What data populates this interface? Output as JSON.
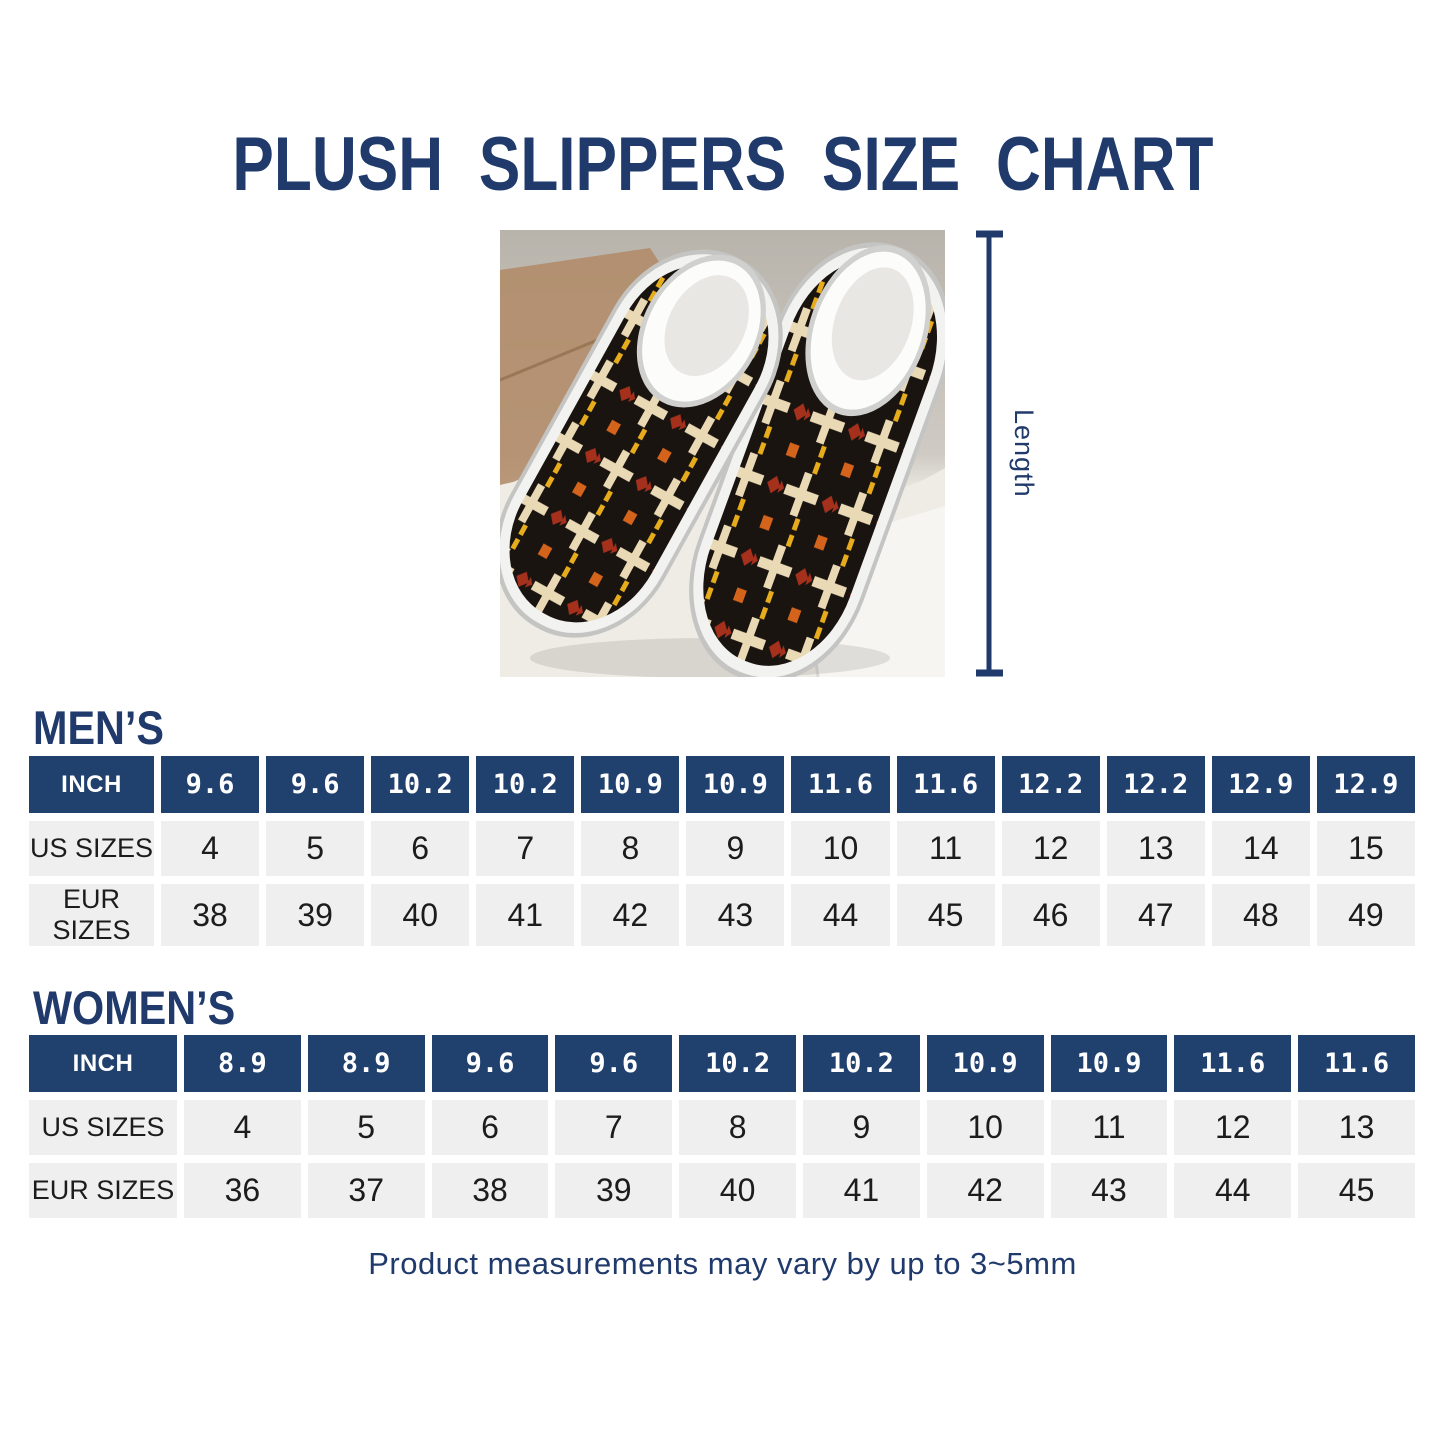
{
  "page": {
    "title": "PLUSH SLIPPERS SIZE CHART",
    "footer_note": "Product measurements may vary by up to 3~5mm"
  },
  "product": {
    "length_label": "Length"
  },
  "mens": {
    "heading": "MEN’S",
    "rows": [
      {
        "key": "inch",
        "label": "INCH",
        "header": true,
        "values": [
          "9.6",
          "9.6",
          "10.2",
          "10.2",
          "10.9",
          "10.9",
          "11.6",
          "11.6",
          "12.2",
          "12.2",
          "12.9",
          "12.9"
        ]
      },
      {
        "key": "us",
        "label": "US SIZES",
        "header": false,
        "values": [
          "4",
          "5",
          "6",
          "7",
          "8",
          "9",
          "10",
          "11",
          "12",
          "13",
          "14",
          "15"
        ]
      },
      {
        "key": "eur",
        "label": "EUR SIZES",
        "header": false,
        "values": [
          "38",
          "39",
          "40",
          "41",
          "42",
          "43",
          "44",
          "45",
          "46",
          "47",
          "48",
          "49"
        ]
      }
    ]
  },
  "womens": {
    "heading": "WOMEN’S",
    "rows": [
      {
        "key": "inch",
        "label": "INCH",
        "header": true,
        "values": [
          "8.9",
          "8.9",
          "9.6",
          "9.6",
          "10.2",
          "10.2",
          "10.9",
          "10.9",
          "11.6",
          "11.6"
        ]
      },
      {
        "key": "us",
        "label": "US SIZES",
        "header": false,
        "values": [
          "4",
          "5",
          "6",
          "7",
          "8",
          "9",
          "10",
          "11",
          "12",
          "13"
        ]
      },
      {
        "key": "eur",
        "label": "EUR SIZES",
        "header": false,
        "values": [
          "36",
          "37",
          "38",
          "39",
          "40",
          "41",
          "42",
          "43",
          "44",
          "45"
        ]
      }
    ]
  },
  "colors": {
    "navy": "#1f3a6b",
    "table_header_bg": "#20406e",
    "cell_bg": "#efefef",
    "cell_text": "#1c1c1c"
  }
}
